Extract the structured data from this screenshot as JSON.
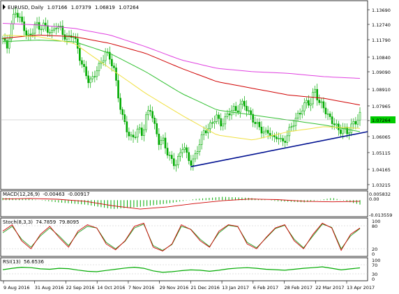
{
  "chart_window": {
    "symbol": "EURUSD",
    "timeframe": "Daily",
    "ohlc": [
      "1.07166",
      "1.07379",
      "1.06819",
      "1.07264"
    ],
    "current_price_label": "1.07264",
    "colors": {
      "candles": "#00aa00",
      "ma_magenta": "#e040e0",
      "ma_red": "#d00000",
      "ma_green": "#30c030",
      "ma_yellow": "#f0e040",
      "trendline": "#001090",
      "price_tag_bg": "#00cc00",
      "stoch_main": "#d00000",
      "stoch_signal": "#20a020",
      "rsi": "#00aa00"
    }
  },
  "chart_data": [
    {
      "type": "candlestick",
      "panel": "price",
      "y_ticks": [
        "1.13690",
        "1.12740",
        "1.11790",
        "1.10840",
        "1.09090",
        "1.08910",
        "1.07965",
        "1.07015",
        "1.06065",
        "1.05115",
        "1.04165",
        "1.03215"
      ],
      "y_range": [
        1.0315,
        1.1385
      ],
      "x_ticks": [
        "9 Aug 2016",
        "31 Aug 2016",
        "22 Sep 2016",
        "14 Oct 2016",
        "7 Nov 2016",
        "29 Nov 2016",
        "21 Dec 2016",
        "13 Jan 2017",
        "6 Feb 2017",
        "28 Feb 2017",
        "22 Mar 2017",
        "13 Apr 2017"
      ],
      "close_path": [
        1.118,
        1.112,
        1.125,
        1.135,
        1.13,
        1.126,
        1.118,
        1.121,
        1.127,
        1.124,
        1.126,
        1.123,
        1.121,
        1.126,
        1.124,
        1.119,
        1.118,
        1.121,
        1.114,
        1.104,
        1.098,
        1.092,
        1.094,
        1.1,
        1.103,
        1.11,
        1.106,
        1.101,
        1.085,
        1.072,
        1.065,
        1.058,
        1.059,
        1.064,
        1.06,
        1.072,
        1.076,
        1.065,
        1.056,
        1.057,
        1.05,
        1.045,
        1.042,
        1.047,
        1.055,
        1.046,
        1.043,
        1.048,
        1.056,
        1.062,
        1.064,
        1.067,
        1.072,
        1.066,
        1.069,
        1.073,
        1.076,
        1.074,
        1.079,
        1.078,
        1.073,
        1.069,
        1.066,
        1.063,
        1.061,
        1.062,
        1.057,
        1.06,
        1.055,
        1.058,
        1.064,
        1.068,
        1.072,
        1.076,
        1.08,
        1.079,
        1.088,
        1.079,
        1.078,
        1.072,
        1.069,
        1.066,
        1.062,
        1.064,
        1.061,
        1.066,
        1.068,
        1.072
      ],
      "moving_averages": [
        {
          "color": "#e040e0",
          "values": [
            1.127,
            1.126,
            1.124,
            1.12,
            1.113,
            1.105,
            1.1,
            1.098,
            1.097,
            1.095,
            1.094
          ]
        },
        {
          "color": "#d00000",
          "values": [
            1.118,
            1.12,
            1.119,
            1.115,
            1.109,
            1.1,
            1.092,
            1.088,
            1.084,
            1.082,
            1.078
          ]
        },
        {
          "color": "#30c030",
          "values": [
            1.116,
            1.117,
            1.116,
            1.109,
            1.098,
            1.085,
            1.075,
            1.072,
            1.069,
            1.066,
            1.062
          ]
        },
        {
          "color": "#f0e040",
          "values": [
            1.12,
            1.119,
            1.115,
            1.1,
            1.085,
            1.072,
            1.06,
            1.057,
            1.062,
            1.065,
            1.064
          ]
        }
      ],
      "trendline": {
        "from": [
          1.041,
          "21 Dec 2016"
        ],
        "to": [
          1.062,
          "13 Apr 2017"
        ]
      }
    },
    {
      "type": "line",
      "panel": "macd",
      "title": "MACD(12,26,9)",
      "readout": [
        "-0.00463",
        "-0.00917"
      ],
      "y_ticks": [
        "0.005832",
        "0.00",
        "-0.013559"
      ],
      "y_range": [
        -0.0136,
        0.0058
      ],
      "signal_path": [
        0.001,
        0.0015,
        0.0008,
        -0.001,
        -0.005,
        -0.008,
        -0.006,
        -0.003,
        -0.0005,
        0.001,
        0.0005,
        -0.001,
        -0.0015,
        -0.001
      ],
      "histogram_path": [
        0.002,
        0.001,
        -0.002,
        -0.004,
        -0.008,
        -0.006,
        -0.003,
        0.001,
        0.003,
        0.002,
        -0.001,
        -0.002,
        0.002,
        -0.004
      ]
    },
    {
      "type": "line",
      "panel": "stochastic",
      "title": "Stoch(8,3,3)",
      "readout": [
        "74.7859",
        "79.8095"
      ],
      "y_ticks": [
        "100",
        "80",
        "20",
        "0"
      ],
      "y_range": [
        0,
        100
      ],
      "main_path": [
        70,
        90,
        40,
        15,
        60,
        85,
        50,
        20,
        70,
        90,
        80,
        30,
        12,
        40,
        85,
        95,
        20,
        8,
        30,
        90,
        75,
        40,
        20,
        70,
        90,
        85,
        30,
        15,
        50,
        80,
        90,
        40,
        15,
        60,
        95,
        80,
        10,
        60,
        80
      ],
      "signal_path": [
        65,
        85,
        45,
        20,
        55,
        80,
        55,
        25,
        65,
        85,
        80,
        35,
        15,
        38,
        80,
        92,
        25,
        10,
        28,
        85,
        76,
        45,
        22,
        65,
        88,
        84,
        35,
        18,
        48,
        78,
        88,
        45,
        18,
        55,
        92,
        82,
        15,
        55,
        78
      ]
    },
    {
      "type": "line",
      "panel": "rsi",
      "title": "RSI(13)",
      "readout": [
        "56.6536"
      ],
      "y_ticks": [
        "100",
        "70",
        "30",
        "0"
      ],
      "y_range": [
        0,
        100
      ],
      "rsi_path": [
        48,
        55,
        60,
        58,
        52,
        50,
        55,
        53,
        46,
        40,
        38,
        44,
        50,
        56,
        60,
        55,
        42,
        35,
        38,
        43,
        47,
        45,
        40,
        45,
        52,
        56,
        58,
        55,
        50,
        48,
        45,
        50,
        55,
        58,
        62,
        55,
        47,
        52,
        57
      ]
    }
  ]
}
